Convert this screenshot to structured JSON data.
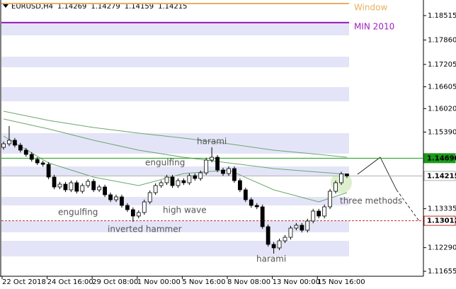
{
  "chart_data": {
    "type": "candlestick",
    "title": "EURUSD,H4",
    "quote": [
      1.14269,
      1.14279,
      1.14159,
      1.14215
    ],
    "categories": [
      "22 Oct 2018",
      null,
      null,
      null,
      null,
      null,
      null,
      null,
      "24 Oct 16:00",
      null,
      null,
      null,
      null,
      null,
      null,
      null,
      "29 Oct 08:00",
      null,
      null,
      null,
      null,
      null,
      null,
      null,
      "1 Nov 00:00",
      null,
      null,
      null,
      null,
      null,
      null,
      null,
      "5 Nov 16:00",
      null,
      null,
      null,
      null,
      null,
      null,
      null,
      "8 Nov 08:00",
      null,
      null,
      null,
      null,
      null,
      null,
      null,
      "13 Nov 00:00",
      null,
      null,
      null,
      null,
      null,
      null,
      null,
      "15 Nov 16:00",
      null,
      null,
      null,
      null,
      null
    ],
    "open": [
      1.1498,
      1.15076,
      1.15171,
      1.15038,
      1.14905,
      1.14791,
      1.14658,
      1.14563,
      1.14525,
      1.14183,
      1.13917,
      1.13993,
      1.13841,
      1.14031,
      1.13803,
      1.13955,
      1.14069,
      1.13841,
      1.13917,
      1.13708,
      1.13575,
      1.13651,
      1.13423,
      1.13309,
      1.13138,
      1.13233,
      1.13518,
      1.13765,
      1.13955,
      1.14031,
      1.14183,
      1.13955,
      1.14088,
      1.14031,
      1.14221,
      1.14145,
      1.14297,
      1.14639,
      1.14715,
      1.14373,
      1.14278,
      1.14411,
      1.14088,
      1.13841,
      1.13575,
      1.13423,
      1.13385,
      1.12853,
      1.12378,
      1.12283,
      1.12473,
      1.12568,
      1.12815,
      1.12891,
      1.12758,
      1.13005,
      1.13271,
      1.13138,
      1.13385,
      1.13803,
      1.14031,
      1.14269
    ],
    "high": [
      1.15136,
      1.1555,
      1.15231,
      1.15098,
      1.14965,
      1.14851,
      1.14718,
      1.14623,
      1.14585,
      1.14243,
      1.14053,
      1.14053,
      1.14091,
      1.14091,
      1.14015,
      1.14129,
      1.14129,
      1.13977,
      1.13977,
      1.13768,
      1.13711,
      1.13711,
      1.13483,
      1.13369,
      1.13293,
      1.13578,
      1.13825,
      1.14015,
      1.14091,
      1.14243,
      1.14243,
      1.14148,
      1.14148,
      1.14281,
      1.14281,
      1.14357,
      1.14699,
      1.1498,
      1.14775,
      1.14433,
      1.14471,
      1.14471,
      1.14148,
      1.13901,
      1.13635,
      1.13483,
      1.13445,
      1.12913,
      1.12438,
      1.12533,
      1.12628,
      1.12875,
      1.12951,
      1.12951,
      1.13065,
      1.13331,
      1.13331,
      1.13445,
      1.13863,
      1.14091,
      1.14329,
      1.14279
    ],
    "low": [
      1.1492,
      1.15016,
      1.14978,
      1.14845,
      1.14731,
      1.14598,
      1.14503,
      1.14465,
      1.14123,
      1.13857,
      1.13857,
      1.13781,
      1.13781,
      1.13743,
      1.13743,
      1.13895,
      1.13781,
      1.13781,
      1.13648,
      1.13515,
      1.13515,
      1.13363,
      1.13249,
      1.12986,
      1.13078,
      1.13173,
      1.13458,
      1.13705,
      1.13895,
      1.13971,
      1.13895,
      1.13895,
      1.13971,
      1.13971,
      1.14085,
      1.14085,
      1.14237,
      1.14579,
      1.14313,
      1.14218,
      1.14218,
      1.14028,
      1.13781,
      1.13515,
      1.13363,
      1.13325,
      1.12793,
      1.12318,
      1.12131,
      1.12223,
      1.12413,
      1.12508,
      1.12755,
      1.12698,
      1.12698,
      1.12945,
      1.13078,
      1.13078,
      1.13325,
      1.13743,
      1.13971,
      1.14159
    ],
    "close": [
      1.15076,
      1.15171,
      1.15038,
      1.14905,
      1.14791,
      1.14658,
      1.14563,
      1.14525,
      1.14183,
      1.13917,
      1.13993,
      1.13841,
      1.14031,
      1.13803,
      1.13955,
      1.14069,
      1.13841,
      1.13917,
      1.13708,
      1.13575,
      1.13651,
      1.13423,
      1.13309,
      1.13138,
      1.13233,
      1.13518,
      1.13765,
      1.13955,
      1.14031,
      1.14183,
      1.13955,
      1.14088,
      1.14031,
      1.14221,
      1.14145,
      1.14297,
      1.14639,
      1.14715,
      1.14373,
      1.14278,
      1.14411,
      1.14088,
      1.13841,
      1.13575,
      1.13423,
      1.13385,
      1.12853,
      1.12378,
      1.12283,
      1.12473,
      1.12568,
      1.12815,
      1.12891,
      1.12758,
      1.13005,
      1.13271,
      1.13138,
      1.13385,
      1.13803,
      1.14031,
      1.14269,
      1.14215
    ],
    "ylim": [
      1.11523,
      1.18933
    ],
    "yticks": [
      1.18515,
      {
        "value": 1.1786,
        "label": "1.17860"
      },
      1.17205,
      1.16605,
      {
        "value": 1.1602,
        "label": "1.16020"
      },
      {
        "value": 1.1539,
        "label": "1.15390"
      },
      1.13335,
      {
        "value": 1.1229,
        "label": "1.12290"
      },
      1.11655
    ],
    "ma": [
      {
        "color": "#6aa86a",
        "x": [
          0,
          8,
          16,
          24,
          32,
          40,
          48,
          56,
          61
        ],
        "values": [
          1.1595,
          1.15703,
          1.15513,
          1.15361,
          1.15228,
          1.15076,
          1.14905,
          1.14791,
          1.14715
        ]
      },
      {
        "color": "#6aa86a",
        "x": [
          0,
          8,
          16,
          24,
          32,
          40,
          48,
          56,
          61
        ],
        "values": [
          1.15741,
          1.15475,
          1.15171,
          1.14905,
          1.14715,
          1.14563,
          1.14411,
          1.14316,
          1.14259
        ]
      },
      {
        "color": "#6aa86a",
        "x": [
          0,
          8,
          16,
          24,
          32,
          40,
          48,
          56,
          61
        ],
        "values": [
          1.15285,
          1.14563,
          1.14183,
          1.13955,
          1.14278,
          1.14373,
          1.13841,
          1.13518,
          1.13765
        ]
      }
    ],
    "zones": [
      [
        1.18363,
        1.17983
      ],
      [
        1.17413,
        1.17128
      ],
      [
        1.16596,
        1.16216
      ],
      [
        1.15361,
        1.1481
      ],
      [
        1.14468,
        1.14221
      ],
      [
        1.13651,
        1.13423
      ],
      [
        1.13005,
        1.12701
      ],
      [
        1.12473,
        1.12055
      ]
    ],
    "zone_color": "#e4e4f8",
    "levels": [
      {
        "name": "Window",
        "value": 1.18838,
        "color": "#e8b060"
      },
      {
        "name": "MIN 2010",
        "value": 1.18325,
        "color": "#a020c0"
      },
      {
        "value": 1.1469,
        "label": "1.14690",
        "color": "#1a9a1a"
      },
      {
        "value": 1.14215,
        "color": "#b0b0b0"
      },
      {
        "value": 1.13012,
        "color": "#c03030",
        "dash": true
      }
    ],
    "annotations": [
      "harami",
      "engulfing",
      "engulfing",
      "high wave",
      "inverted hammer",
      "harami",
      "three methods"
    ]
  }
}
